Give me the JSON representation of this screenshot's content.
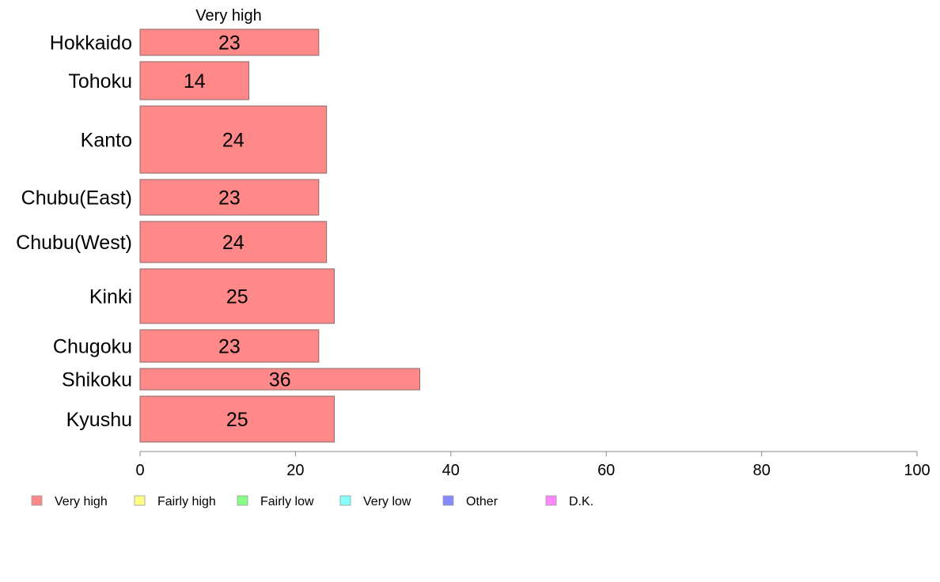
{
  "chart_data": {
    "type": "bar",
    "orientation": "horizontal",
    "stacked": true,
    "series_title": "Very high",
    "categories": [
      "Hokkaido",
      "Tohoku",
      "Kanto",
      "Chubu(East)",
      "Chubu(West)",
      "Kinki",
      "Chugoku",
      "Shikoku",
      "Kyushu"
    ],
    "series": [
      {
        "name": "Very high",
        "color": "#ff8888",
        "values": [
          23,
          14,
          24,
          23,
          24,
          25,
          23,
          36,
          25
        ],
        "labels": [
          "23",
          "14",
          "24",
          "23",
          "24",
          "25",
          "23",
          "36",
          "25"
        ]
      }
    ],
    "xlim": [
      0,
      100
    ],
    "xticks": [
      0,
      20,
      40,
      60,
      80,
      100
    ],
    "xtick_labels": [
      "0",
      "20",
      "40",
      "60",
      "80",
      "100"
    ],
    "grid": false,
    "legend_position": "bottom",
    "legend": [
      {
        "label": "Very high",
        "color": "#ff8888"
      },
      {
        "label": "Fairly high",
        "color": "#ffff88"
      },
      {
        "label": "Fairly low",
        "color": "#88ff88"
      },
      {
        "label": "Very low",
        "color": "#88ffff"
      },
      {
        "label": "Other",
        "color": "#8888ff"
      },
      {
        "label": "D.K.",
        "color": "#ff88ff"
      }
    ]
  }
}
